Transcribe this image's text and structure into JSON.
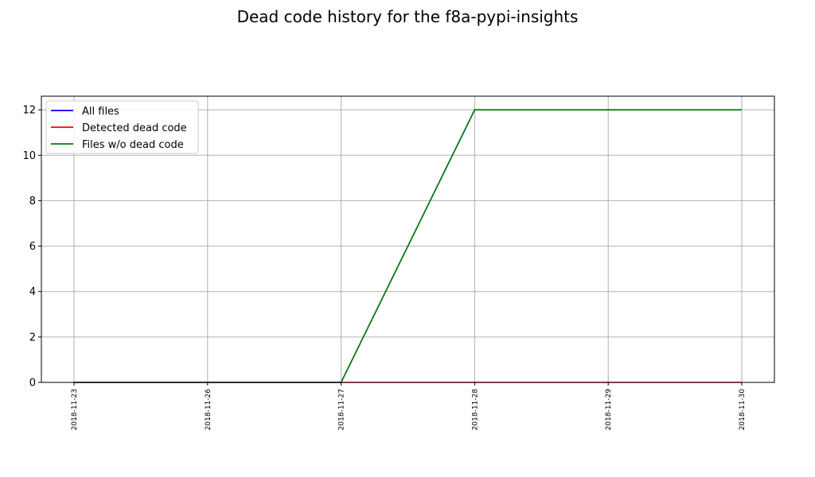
{
  "chart_data": {
    "type": "line",
    "title": "Dead code history for the f8a-pypi-insights",
    "xlabel": "",
    "ylabel": "",
    "categories": [
      "2018-11-23",
      "2018-11-26",
      "2018-11-27",
      "2018-11-28",
      "2018-11-29",
      "2018-11-30"
    ],
    "ylim": [
      0,
      12.6
    ],
    "yticks": [
      0,
      2,
      4,
      6,
      8,
      10,
      12
    ],
    "grid": true,
    "legend_position": "top-left",
    "series": [
      {
        "name": "All files",
        "color": "#0000ff",
        "values": [
          0,
          0,
          0,
          12,
          12,
          12
        ]
      },
      {
        "name": "Detected dead code",
        "color": "#ff0000",
        "values": [
          0,
          0,
          0,
          0,
          0,
          0
        ]
      },
      {
        "name": "Files w/o dead code",
        "color": "#008000",
        "values": [
          0,
          0,
          0,
          12,
          12,
          12
        ]
      }
    ]
  }
}
